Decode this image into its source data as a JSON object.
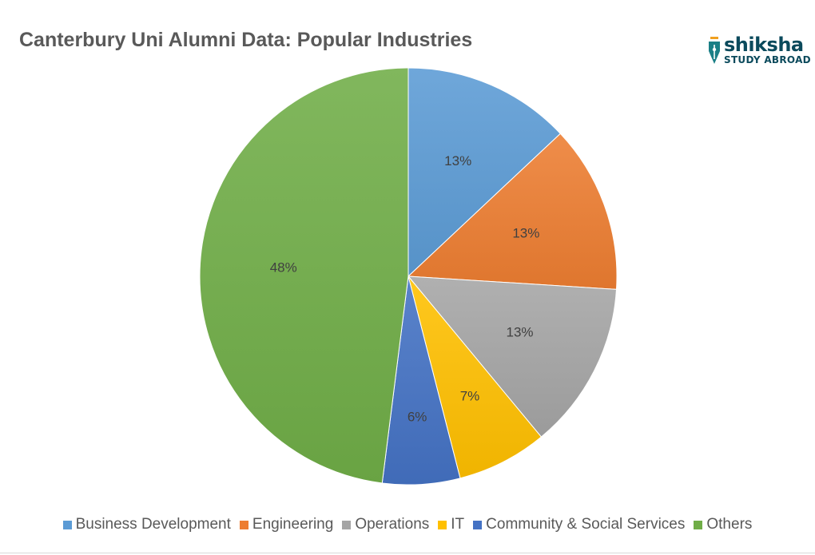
{
  "chart_data": {
    "type": "pie",
    "title": "Canterbury Uni Alumni Data: Popular Industries",
    "categories": [
      "Business Development",
      "Engineering",
      "Operations",
      "IT",
      "Community & Social Services",
      "Others"
    ],
    "values": [
      13,
      13,
      13,
      7,
      6,
      48
    ],
    "data_labels": [
      "13%",
      "13%",
      "13%",
      "7%",
      "6%",
      "48%"
    ],
    "colors": [
      "#5b9bd5",
      "#ed7d31",
      "#a5a5a5",
      "#ffc000",
      "#4472c4",
      "#70ad47"
    ],
    "legend_position": "bottom",
    "start_angle": "12 o'clock, clockwise"
  },
  "logo": {
    "name": "shiksha",
    "tagline": "STUDY ABROAD"
  }
}
